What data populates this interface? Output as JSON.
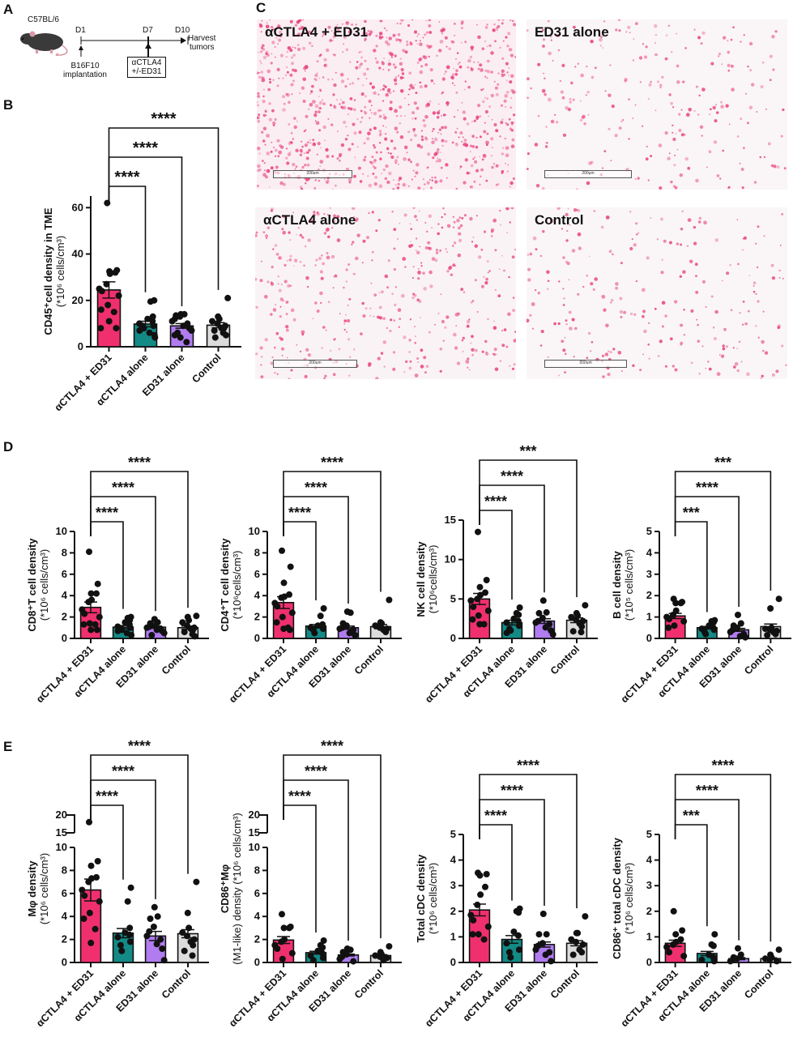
{
  "panels": {
    "A": {
      "letter": "A",
      "strain": "C57BL/6",
      "timeline": [
        {
          "label": "D1",
          "note": "B16F10\nimplantation"
        },
        {
          "label": "D7",
          "note": "αCTLA4\n+/-ED31"
        },
        {
          "label": "D10",
          "note": "Harvest\ntumors"
        }
      ],
      "note_d1_line1": "B16F10",
      "note_d1_line2": "implantation",
      "note_d7_line1": "αCTLA4",
      "note_d7_line2": "+/-ED31",
      "note_d10_line1": "Harvest",
      "note_d10_line2": "tumors"
    },
    "B": {
      "letter": "B"
    },
    "C": {
      "letter": "C",
      "images": [
        {
          "label": "αCTLA4 + ED31",
          "scale": "200um",
          "density": "high"
        },
        {
          "label": "ED31 alone",
          "scale": "200um",
          "density": "low"
        },
        {
          "label": "αCTLA4 alone",
          "scale": "200um",
          "density": "medium"
        },
        {
          "label": "Control",
          "scale": "200um",
          "density": "low"
        }
      ]
    },
    "D": {
      "letter": "D"
    },
    "E": {
      "letter": "E"
    }
  },
  "colors": {
    "combo": "#f0306e",
    "ctla4": "#138a85",
    "ed31": "#b07cf0",
    "control": "#dcdcdc",
    "stain": "#e8417d"
  },
  "chart_data": [
    {
      "id": "B",
      "type": "bar",
      "title": "",
      "categories": [
        "αCTLA4 + ED31",
        "αCTLA4 alone",
        "ED31 alone",
        "Control"
      ],
      "ylabel": "CD45⁺cell density in TME (*10⁶ cells/cm³)",
      "yticks": [
        0,
        20,
        40,
        60
      ],
      "ylim": [
        0,
        65
      ],
      "values": [
        24.5,
        9.8,
        9.0,
        9.3
      ],
      "sem": [
        3.5,
        1.2,
        1.0,
        1.1
      ],
      "points": [
        [
          62,
          33,
          32.5,
          32,
          31.5,
          27,
          25,
          24,
          22,
          18,
          16,
          15,
          11,
          8,
          8
        ],
        [
          20,
          19.5,
          13,
          12,
          11,
          10,
          9,
          9,
          8,
          7,
          6,
          5,
          4
        ],
        [
          14,
          14,
          13.5,
          13,
          12,
          11,
          10,
          9,
          8,
          7,
          6,
          5,
          4,
          2
        ],
        [
          21,
          13,
          12,
          11,
          10,
          9,
          8,
          8,
          7,
          6,
          5,
          4
        ]
      ],
      "significance": [
        "****",
        "****",
        "****"
      ]
    },
    {
      "id": "D1",
      "type": "bar",
      "categories": [
        "αCTLA4 + ED31",
        "αCTLA4 alone",
        "ED31 alone",
        "Control"
      ],
      "ylabel": "CD8⁺T cell density (*10⁶ cells/cm³)",
      "yticks": [
        0,
        2,
        4,
        6,
        8,
        10
      ],
      "ylim": [
        0,
        10
      ],
      "values": [
        2.9,
        1.05,
        1.05,
        1.0
      ],
      "sem": [
        0.5,
        0.15,
        0.1,
        0.15
      ],
      "points": [
        [
          8.1,
          5.1,
          4.2,
          4.2,
          3.6,
          3.4,
          2.7,
          2.3,
          2.0,
          1.4,
          1.3,
          1.3,
          0.8,
          0.8
        ],
        [
          2.0,
          1.9,
          1.7,
          1.5,
          1.3,
          1.1,
          1.0,
          0.9,
          0.8,
          0.7,
          0.5,
          0.3
        ],
        [
          1.8,
          1.5,
          1.4,
          1.2,
          1.1,
          1.0,
          0.9,
          0.8,
          0.7,
          0.5,
          0.3
        ],
        [
          2.1,
          2.0,
          1.7,
          1.5,
          1.2,
          1.0,
          0.9,
          0.8,
          0.6,
          0.4,
          0.2
        ]
      ],
      "significance": [
        "****",
        "****",
        "****"
      ]
    },
    {
      "id": "D2",
      "type": "bar",
      "categories": [
        "αCTLA4 + ED31",
        "αCTLA4 alone",
        "ED31 alone",
        "Control"
      ],
      "ylabel": "CD4⁺T cell density (*10⁶cells/cm³)",
      "yticks": [
        0,
        2,
        4,
        6,
        8,
        10
      ],
      "ylim": [
        0,
        10
      ],
      "values": [
        3.35,
        1.15,
        1.0,
        1.1
      ],
      "sem": [
        0.55,
        0.15,
        0.15,
        0.2
      ],
      "points": [
        [
          8.2,
          6.7,
          5.2,
          4.1,
          3.9,
          3.8,
          3.3,
          3.0,
          2.4,
          2.0,
          1.5,
          1.0,
          0.9,
          0.8
        ],
        [
          2.8,
          2.1,
          1.3,
          1.2,
          1.1,
          1.0,
          0.9,
          0.8,
          0.5
        ],
        [
          2.5,
          2.4,
          1.4,
          1.2,
          1.0,
          0.9,
          0.8,
          0.5,
          0.3
        ],
        [
          3.6,
          1.5,
          1.4,
          1.2,
          1.0,
          0.9,
          0.8,
          0.6
        ]
      ],
      "significance": [
        "****",
        "****",
        "****"
      ]
    },
    {
      "id": "D3",
      "type": "bar",
      "categories": [
        "αCTLA4 + ED31",
        "αCTLA4 alone",
        "ED31 alone",
        "Control"
      ],
      "ylabel": "NK cell density (*10⁶cells/cm³)",
      "yticks": [
        0,
        5,
        10,
        15
      ],
      "ylim": [
        0,
        15
      ],
      "values": [
        5.0,
        2.0,
        2.2,
        2.3
      ],
      "sem": [
        0.7,
        0.3,
        0.3,
        0.3
      ],
      "points": [
        [
          13.5,
          7.4,
          6.5,
          5.8,
          5.5,
          5.0,
          4.8,
          4.0,
          3.5,
          2.9,
          2.4,
          1.8,
          1.8
        ],
        [
          3.9,
          3.2,
          3.0,
          2.5,
          2.2,
          2.0,
          1.6,
          1.2,
          1.0,
          0.7
        ],
        [
          4.8,
          3.3,
          3.2,
          2.6,
          2.2,
          2.0,
          1.8,
          1.4,
          1.0,
          0.5
        ],
        [
          4.2,
          3.2,
          2.9,
          2.7,
          2.4,
          2.2,
          1.9,
          1.5,
          0.9,
          0.8
        ]
      ],
      "significance": [
        "****",
        "****",
        "***"
      ]
    },
    {
      "id": "D4",
      "type": "bar",
      "categories": [
        "αCTLA4 + ED31",
        "αCTLA4 alone",
        "ED31 alone",
        "Control"
      ],
      "ylabel": "B cell density (*10⁵ cells/cm³)",
      "yticks": [
        0,
        1,
        2,
        3,
        4,
        5
      ],
      "ylim": [
        0,
        5
      ],
      "values": [
        1.05,
        0.5,
        0.4,
        0.55
      ],
      "sem": [
        0.12,
        0.06,
        0.07,
        0.12
      ],
      "points": [
        [
          1.85,
          1.7,
          1.65,
          1.65,
          1.3,
          1.1,
          1.0,
          0.9,
          0.8,
          0.6,
          0.5
        ],
        [
          0.85,
          0.8,
          0.75,
          0.6,
          0.5,
          0.45,
          0.4,
          0.3,
          0.2
        ],
        [
          1.1,
          0.7,
          0.6,
          0.5,
          0.4,
          0.3,
          0.2,
          0.1,
          0.05
        ],
        [
          1.85,
          1.4,
          0.5,
          0.45,
          0.4,
          0.35,
          0.3,
          0.2,
          0.15
        ]
      ],
      "significance": [
        "***",
        "****",
        "***"
      ]
    },
    {
      "id": "E1",
      "type": "bar",
      "categories": [
        "αCTLA4 + ED31",
        "αCTLA4 alone",
        "ED31 alone",
        "Control"
      ],
      "ylabel": "Mφ density (*10⁶ cells/cm³)",
      "yticks": [
        0,
        2,
        4,
        6,
        8,
        10,
        15,
        20
      ],
      "ylim": [
        0,
        20
      ],
      "axis_break": [
        10,
        15
      ],
      "values": [
        6.3,
        2.55,
        2.3,
        2.5
      ],
      "sem": [
        0.95,
        0.4,
        0.4,
        0.35
      ],
      "points": [
        [
          18,
          8.8,
          8.4,
          7.4,
          7.3,
          7.0,
          6.3,
          5.8,
          5.3,
          4.3,
          3.8,
          2.9,
          1.7
        ],
        [
          6.5,
          5.3,
          3.0,
          2.6,
          2.4,
          2.2,
          1.8,
          1.5,
          1.0
        ],
        [
          4.8,
          4.0,
          3.8,
          3.1,
          2.7,
          2.3,
          2.0,
          1.6,
          1.2,
          0.2
        ],
        [
          7.0,
          4.3,
          3.0,
          2.6,
          2.3,
          2.0,
          1.8,
          1.5,
          1.0,
          0.6
        ]
      ],
      "significance": [
        "****",
        "****",
        "****"
      ]
    },
    {
      "id": "E2",
      "type": "bar",
      "categories": [
        "αCTLA4 + ED31",
        "αCTLA4 alone",
        "ED31 alone",
        "Control"
      ],
      "ylabel": "CD86⁺Mφ (M1-like) density (*10⁶ cells/cm³)",
      "yticks": [
        0,
        2,
        4,
        6,
        8,
        10,
        15,
        20
      ],
      "ylim": [
        0,
        20
      ],
      "axis_break": [
        10,
        15
      ],
      "values": [
        1.95,
        0.85,
        0.65,
        0.6
      ],
      "sem": [
        0.3,
        0.12,
        0.08,
        0.08
      ],
      "points": [
        [
          4.2,
          3.1,
          3.0,
          3.0,
          2.0,
          1.8,
          1.5,
          1.2,
          0.8,
          0.3
        ],
        [
          1.9,
          1.5,
          1.3,
          1.0,
          0.8,
          0.6,
          0.4,
          0.2
        ],
        [
          1.2,
          1.1,
          0.9,
          0.7,
          0.5,
          0.3,
          0.1
        ],
        [
          1.4,
          0.9,
          0.7,
          0.6,
          0.5,
          0.4,
          0.2
        ]
      ],
      "significance": [
        "****",
        "****",
        "****"
      ]
    },
    {
      "id": "E3",
      "type": "bar",
      "categories": [
        "αCTLA4 + ED31",
        "αCTLA4 alone",
        "ED31 alone",
        "Control"
      ],
      "ylabel": "Total cDC density (*10⁶ cells/cm³)",
      "yticks": [
        0,
        1,
        2,
        3,
        4,
        5
      ],
      "ylim": [
        0,
        5
      ],
      "values": [
        2.05,
        0.9,
        0.7,
        0.75
      ],
      "sem": [
        0.23,
        0.15,
        0.1,
        0.1
      ],
      "points": [
        [
          3.5,
          3.45,
          3.4,
          2.95,
          2.65,
          2.25,
          1.85,
          1.65,
          1.4,
          1.1,
          1.1,
          0.9
        ],
        [
          2.1,
          2.0,
          1.95,
          1.2,
          1.05,
          0.75,
          0.5,
          0.4,
          0.2
        ],
        [
          1.9,
          1.1,
          1.1,
          0.75,
          0.65,
          0.5,
          0.4,
          0.3,
          0.05
        ],
        [
          1.8,
          1.15,
          1.15,
          0.9,
          0.8,
          0.7,
          0.5,
          0.4,
          0.3
        ]
      ],
      "significance": [
        "****",
        "****",
        "****"
      ]
    },
    {
      "id": "E4",
      "type": "bar",
      "categories": [
        "αCTLA4 + ED31",
        "αCTLA4 alone",
        "ED31 alone",
        "Control"
      ],
      "ylabel": "CD86⁺ total cDC density (*10⁶ cells/cm³)",
      "yticks": [
        0,
        1,
        2,
        3,
        4,
        5
      ],
      "ylim": [
        0,
        5
      ],
      "values": [
        0.75,
        0.35,
        0.15,
        0.15
      ],
      "sem": [
        0.12,
        0.08,
        0.04,
        0.03
      ],
      "points": [
        [
          2.0,
          1.25,
          1.1,
          0.9,
          0.8,
          0.7,
          0.6,
          0.4,
          0.25
        ],
        [
          1.1,
          0.7,
          0.65,
          0.3,
          0.2,
          0.1,
          0.05
        ],
        [
          0.55,
          0.3,
          0.2,
          0.15,
          0.1,
          0.05
        ],
        [
          0.5,
          0.3,
          0.2,
          0.15,
          0.1,
          0.05
        ]
      ],
      "significance": [
        "***",
        "****",
        "****"
      ]
    }
  ]
}
